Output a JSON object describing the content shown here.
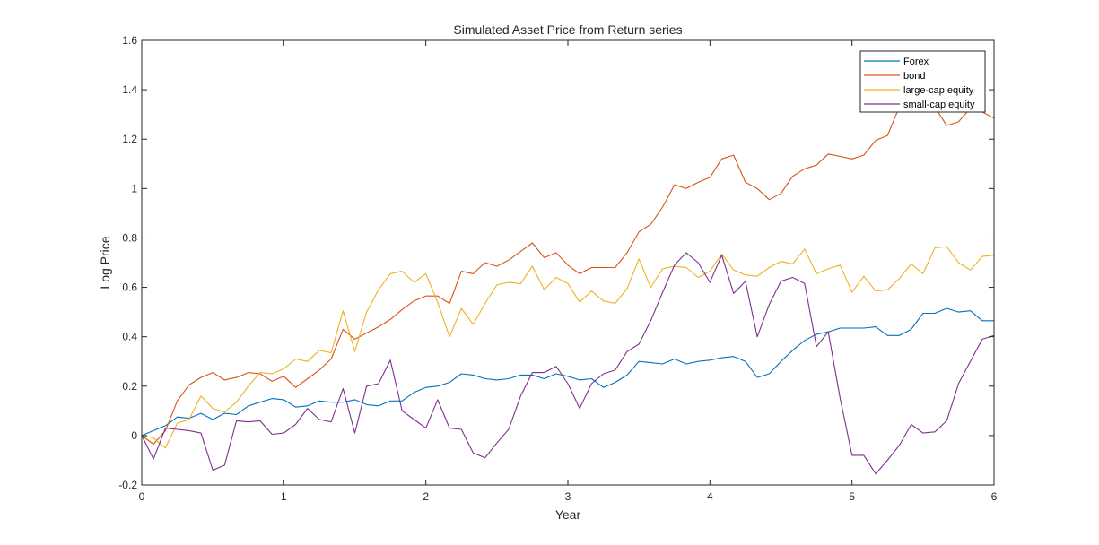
{
  "chart_data": {
    "type": "line",
    "title": "Simulated Asset Price from Return series",
    "xlabel": "Year",
    "ylabel": "Log Price",
    "xlim": [
      0,
      6
    ],
    "ylim": [
      -0.2,
      1.6
    ],
    "xticks": [
      "0",
      "1",
      "2",
      "3",
      "4",
      "5",
      "6"
    ],
    "yticks": [
      "-0.2",
      "0",
      "0.2",
      "0.4",
      "0.6",
      "0.8",
      "1",
      "1.2",
      "1.4",
      "1.6"
    ],
    "grid": false,
    "legend_position": "top-right",
    "x": [
      0,
      0.083,
      0.167,
      0.25,
      0.333,
      0.417,
      0.5,
      0.583,
      0.667,
      0.75,
      0.833,
      0.917,
      1,
      1.083,
      1.167,
      1.25,
      1.333,
      1.417,
      1.5,
      1.583,
      1.667,
      1.75,
      1.833,
      1.917,
      2,
      2.083,
      2.167,
      2.25,
      2.333,
      2.417,
      2.5,
      2.583,
      2.667,
      2.75,
      2.833,
      2.917,
      3,
      3.083,
      3.167,
      3.25,
      3.333,
      3.417,
      3.5,
      3.583,
      3.667,
      3.75,
      3.833,
      3.917,
      4,
      4.083,
      4.167,
      4.25,
      4.333,
      4.417,
      4.5,
      4.583,
      4.667,
      4.75,
      4.833,
      4.917,
      5,
      5.083,
      5.167,
      5.25,
      5.333,
      5.417,
      5.5,
      5.583,
      5.667,
      5.75,
      5.833,
      5.917,
      6
    ],
    "series": [
      {
        "name": "Forex",
        "color": "#0072BD",
        "values": [
          0,
          0.02,
          0.04,
          0.075,
          0.07,
          0.09,
          0.065,
          0.09,
          0.085,
          0.12,
          0.135,
          0.15,
          0.145,
          0.115,
          0.12,
          0.14,
          0.135,
          0.135,
          0.145,
          0.125,
          0.12,
          0.14,
          0.14,
          0.175,
          0.195,
          0.2,
          0.215,
          0.25,
          0.245,
          0.23,
          0.225,
          0.23,
          0.245,
          0.245,
          0.23,
          0.25,
          0.24,
          0.225,
          0.23,
          0.195,
          0.215,
          0.245,
          0.3,
          0.295,
          0.29,
          0.31,
          0.29,
          0.3,
          0.305,
          0.315,
          0.32,
          0.3,
          0.235,
          0.25,
          0.3,
          0.345,
          0.385,
          0.41,
          0.42,
          0.435,
          0.435,
          0.435,
          0.44,
          0.405,
          0.405,
          0.43,
          0.495,
          0.495,
          0.515,
          0.5,
          0.505,
          0.465,
          0.465
        ]
      },
      {
        "name": "bond",
        "color": "#D95319",
        "values": [
          0,
          -0.035,
          0.02,
          0.14,
          0.205,
          0.235,
          0.255,
          0.225,
          0.235,
          0.255,
          0.25,
          0.22,
          0.24,
          0.195,
          0.23,
          0.265,
          0.31,
          0.43,
          0.39,
          0.415,
          0.44,
          0.47,
          0.51,
          0.545,
          0.565,
          0.565,
          0.535,
          0.665,
          0.655,
          0.7,
          0.685,
          0.71,
          0.745,
          0.78,
          0.72,
          0.74,
          0.69,
          0.655,
          0.68,
          0.68,
          0.68,
          0.74,
          0.825,
          0.855,
          0.925,
          1.015,
          1.0,
          1.025,
          1.045,
          1.12,
          1.135,
          1.025,
          1.0,
          0.955,
          0.98,
          1.05,
          1.08,
          1.095,
          1.14,
          1.13,
          1.12,
          1.135,
          1.195,
          1.215,
          1.33,
          1.34,
          1.36,
          1.33,
          1.255,
          1.27,
          1.325,
          1.31,
          1.285
        ]
      },
      {
        "name": "large-cap equity",
        "color": "#EDB120",
        "values": [
          0,
          -0.01,
          -0.05,
          0.05,
          0.065,
          0.16,
          0.11,
          0.095,
          0.135,
          0.2,
          0.255,
          0.25,
          0.27,
          0.31,
          0.3,
          0.345,
          0.335,
          0.505,
          0.34,
          0.5,
          0.59,
          0.655,
          0.665,
          0.62,
          0.655,
          0.54,
          0.4,
          0.515,
          0.45,
          0.535,
          0.61,
          0.62,
          0.615,
          0.685,
          0.59,
          0.64,
          0.615,
          0.54,
          0.585,
          0.545,
          0.535,
          0.595,
          0.715,
          0.6,
          0.675,
          0.685,
          0.68,
          0.64,
          0.665,
          0.735,
          0.67,
          0.65,
          0.645,
          0.68,
          0.705,
          0.695,
          0.755,
          0.655,
          0.675,
          0.69,
          0.58,
          0.645,
          0.585,
          0.59,
          0.635,
          0.695,
          0.655,
          0.76,
          0.765,
          0.7,
          0.67,
          0.725,
          0.73
        ]
      },
      {
        "name": "small-cap equity",
        "color": "#7E2F8E",
        "values": [
          0,
          -0.095,
          0.03,
          0.025,
          0.02,
          0.01,
          -0.14,
          -0.12,
          0.06,
          0.055,
          0.06,
          0.005,
          0.01,
          0.045,
          0.11,
          0.065,
          0.055,
          0.19,
          0.01,
          0.2,
          0.21,
          0.305,
          0.1,
          0.065,
          0.03,
          0.145,
          0.03,
          0.025,
          -0.07,
          -0.09,
          -0.03,
          0.025,
          0.16,
          0.255,
          0.255,
          0.28,
          0.21,
          0.11,
          0.21,
          0.25,
          0.265,
          0.34,
          0.37,
          0.465,
          0.58,
          0.69,
          0.74,
          0.7,
          0.62,
          0.73,
          0.575,
          0.625,
          0.4,
          0.53,
          0.625,
          0.64,
          0.615,
          0.36,
          0.42,
          0.15,
          -0.08,
          -0.08,
          -0.155,
          -0.1,
          -0.04,
          0.045,
          0.01,
          0.015,
          0.06,
          0.21,
          0.3,
          0.39,
          0.405
        ]
      }
    ]
  }
}
